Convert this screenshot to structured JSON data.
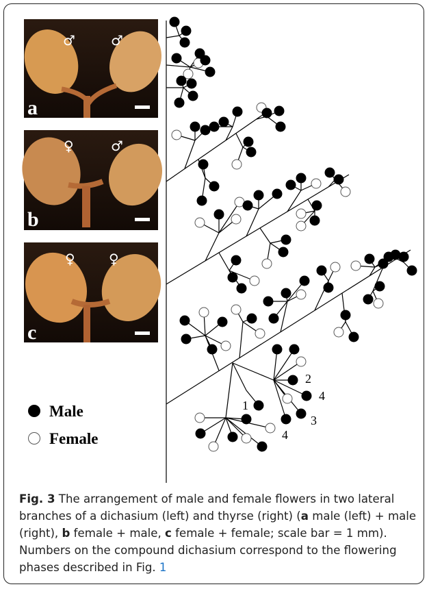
{
  "figure": {
    "panels": [
      {
        "label": "a",
        "symbols": [
          "♂",
          "♂"
        ]
      },
      {
        "label": "b",
        "symbols": [
          "♀",
          "♂"
        ]
      },
      {
        "label": "c",
        "symbols": [
          "♀",
          "♀"
        ]
      }
    ],
    "legend": [
      "Male",
      "Female"
    ],
    "diagram_numbers": [
      "2",
      "4",
      "1",
      "3",
      "4"
    ],
    "caption": [
      "Fig. 3",
      " The arrangement of male and female flowers in two lateral branches of a dichasium (left) and thyrse (right) (",
      "a",
      " male (left) + male (right), ",
      "b",
      " female + male, ",
      "c",
      " female + female; scale bar = 1 mm). Numbers on the compound dichasium correspond to the flowering phases described in Fig. ",
      "1"
    ]
  }
}
